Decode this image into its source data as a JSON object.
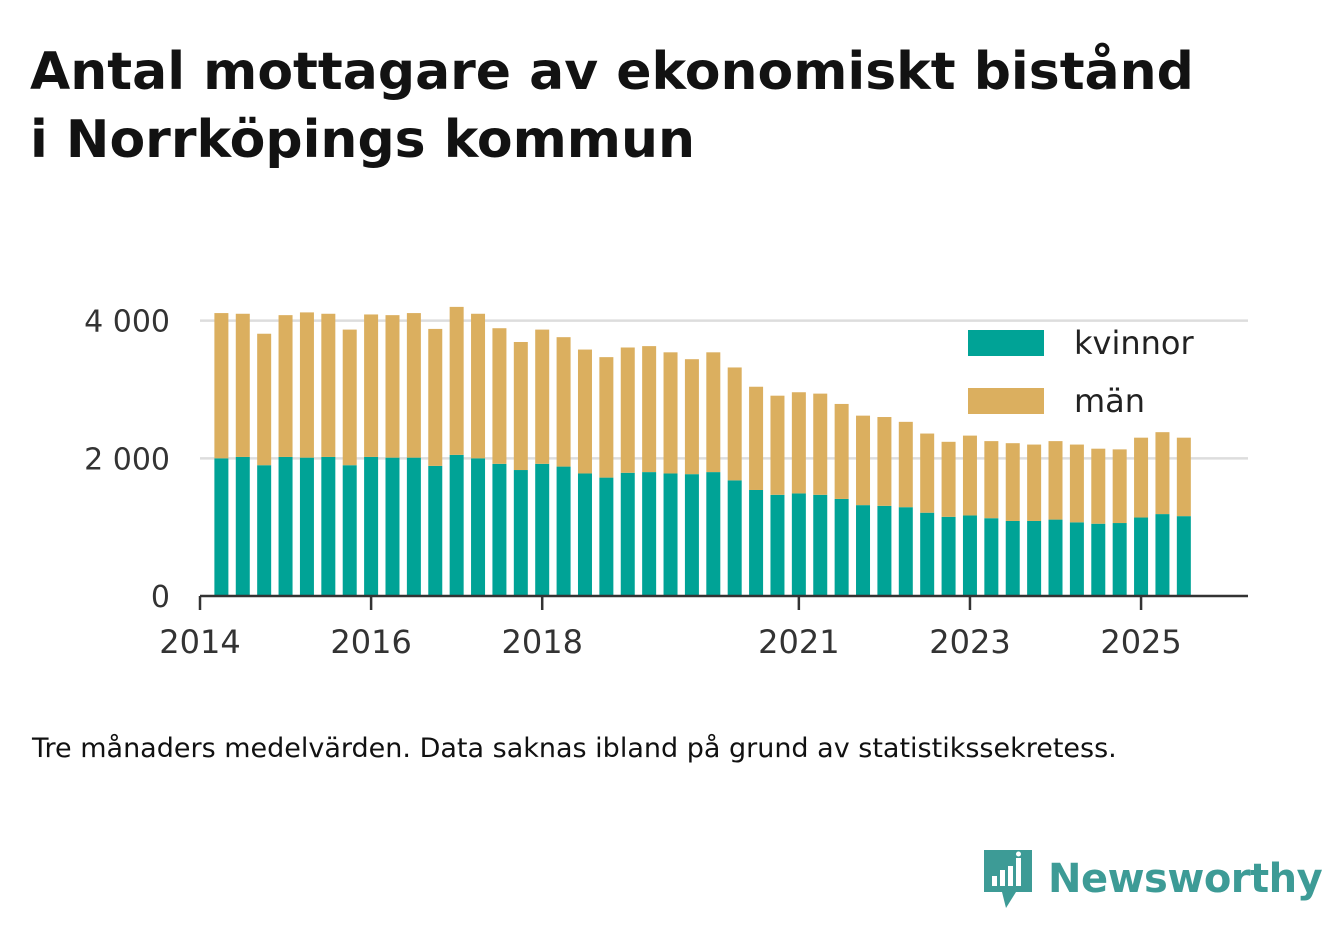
{
  "title": "Antal mottagare av ekonomiskt bistånd\ni Norrköpings kommun",
  "note": "Tre månaders medelvärden. Data saknas ibland på grund av statistikssekretess.",
  "brand": {
    "name": "Newsworthy",
    "icon": "newsworthy-logo-icon",
    "color": "#3d9b96"
  },
  "colors": {
    "kvinnor": "#00a396",
    "man": "#dbaf5f",
    "grid": "#dddddd",
    "axis": "#333333"
  },
  "chart_data": {
    "type": "bar",
    "stacked": true,
    "title": "Antal mottagare av ekonomiskt bistånd i Norrköpings kommun",
    "xlabel": "",
    "ylabel": "",
    "ylim": [
      0,
      4300
    ],
    "xlim": [
      2014.0,
      2026.25
    ],
    "y_ticks": [
      0,
      2000,
      4000
    ],
    "y_tick_labels": [
      "0",
      "2 000",
      "4 000"
    ],
    "x_ticks": [
      2014,
      2016,
      2018,
      2021,
      2023,
      2025
    ],
    "x_tick_labels": [
      "2014",
      "2016",
      "2018",
      "2021",
      "2023",
      "2025"
    ],
    "grid": true,
    "legend_position": "top-right",
    "x": [
      2014.25,
      2014.5,
      2014.75,
      2015.0,
      2015.25,
      2015.5,
      2015.75,
      2016.0,
      2016.25,
      2016.5,
      2016.75,
      2017.0,
      2017.25,
      2017.5,
      2017.75,
      2018.0,
      2018.25,
      2018.5,
      2018.75,
      2019.0,
      2019.25,
      2019.5,
      2019.75,
      2020.0,
      2020.25,
      2020.5,
      2020.75,
      2021.0,
      2021.25,
      2021.5,
      2021.75,
      2022.0,
      2022.25,
      2022.5,
      2022.75,
      2023.0,
      2023.25,
      2023.5,
      2023.75,
      2024.0,
      2024.25,
      2024.5,
      2024.75,
      2025.0,
      2025.25,
      2025.5
    ],
    "series": [
      {
        "name": "kvinnor",
        "color": "#00a396",
        "values": [
          2000,
          2020,
          1900,
          2020,
          2010,
          2020,
          1900,
          2020,
          2010,
          2010,
          1890,
          2050,
          2000,
          1920,
          1830,
          1920,
          1880,
          1780,
          1720,
          1790,
          1800,
          1780,
          1770,
          1800,
          1680,
          1540,
          1470,
          1490,
          1470,
          1410,
          1320,
          1310,
          1290,
          1210,
          1150,
          1170,
          1130,
          1090,
          1090,
          1110,
          1070,
          1050,
          1060,
          1140,
          1190,
          1160
        ]
      },
      {
        "name": "män",
        "color": "#dbaf5f",
        "values": [
          2110,
          2080,
          1910,
          2060,
          2110,
          2080,
          1970,
          2070,
          2070,
          2100,
          1990,
          2150,
          2100,
          1970,
          1860,
          1950,
          1880,
          1800,
          1750,
          1820,
          1830,
          1760,
          1670,
          1740,
          1640,
          1500,
          1440,
          1470,
          1470,
          1380,
          1300,
          1290,
          1240,
          1150,
          1090,
          1160,
          1120,
          1130,
          1110,
          1140,
          1130,
          1090,
          1070,
          1160,
          1190,
          1140
        ]
      }
    ]
  }
}
